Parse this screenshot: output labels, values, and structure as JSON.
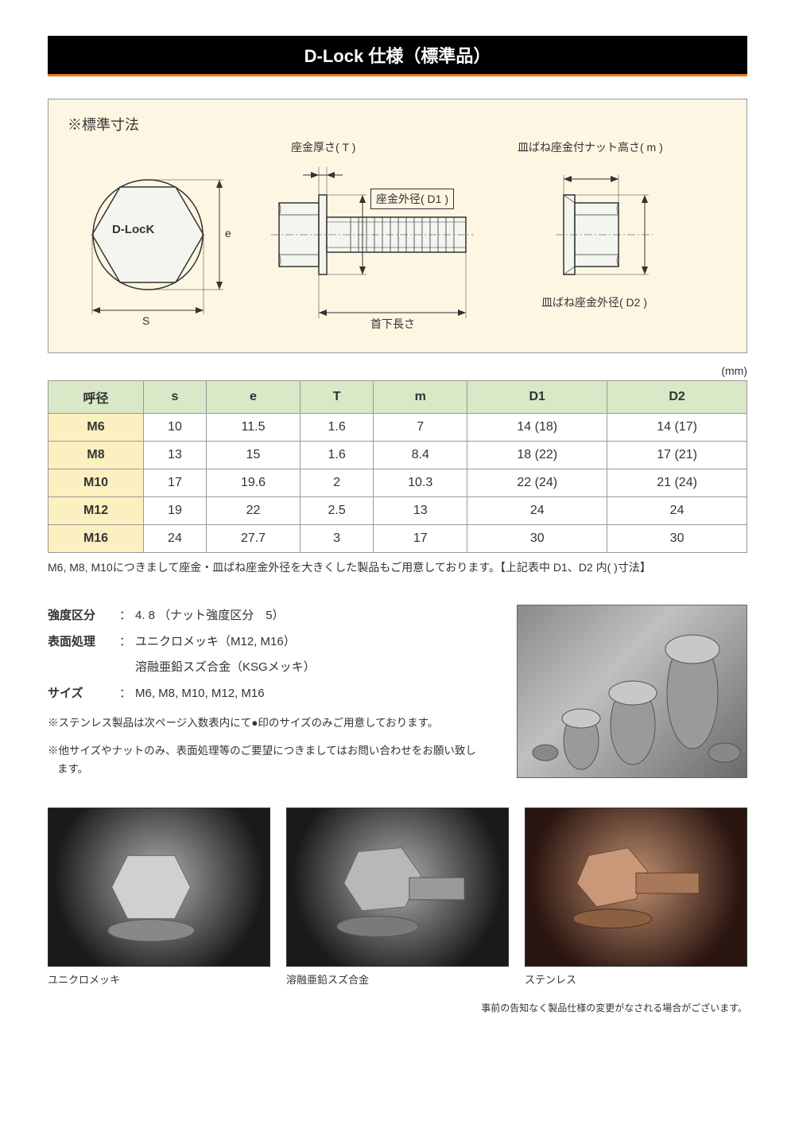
{
  "title": "D-Lock 仕様（標準品）",
  "diagram": {
    "heading": "※標準寸法",
    "labels": {
      "washer_thickness": "座金厚さ( T )",
      "washer_od": "座金外径( D1 )",
      "nut_height": "皿ばね座金付ナット高さ( m )",
      "spring_washer_od": "皿ばね座金外径( D2 )",
      "under_head_length": "首下長さ",
      "s": "S",
      "e": "e",
      "brand": "D-LocK"
    }
  },
  "unit": "(mm)",
  "table": {
    "columns": [
      "呼径",
      "s",
      "e",
      "T",
      "m",
      "D1",
      "D2"
    ],
    "rows": [
      [
        "M6",
        "10",
        "11.5",
        "1.6",
        "7",
        "14 (18)",
        "14 (17)"
      ],
      [
        "M8",
        "13",
        "15",
        "1.6",
        "8.4",
        "18 (22)",
        "17 (21)"
      ],
      [
        "M10",
        "17",
        "19.6",
        "2",
        "10.3",
        "22 (24)",
        "21 (24)"
      ],
      [
        "M12",
        "19",
        "22",
        "2.5",
        "13",
        "24",
        "24"
      ],
      [
        "M16",
        "24",
        "27.7",
        "3",
        "17",
        "30",
        "30"
      ]
    ]
  },
  "table_note": "M6, M8, M10につきまして座金・皿ばね座金外径を大きくした製品もご用意しております。【上記表中 D1、D2 内(   )寸法】",
  "details": {
    "strength": {
      "label": "強度区分",
      "value": "4. 8 （ナット強度区分　5）"
    },
    "surface": {
      "label": "表面処理",
      "value1": "ユニクロメッキ（M12, M16）",
      "value2": "溶融亜鉛スズ合金（KSGメッキ）"
    },
    "size": {
      "label": "サイズ",
      "value": "M6, M8, M10, M12, M16"
    },
    "note1": "※ステンレス製品は次ページ入数表内にて●印のサイズのみご用意しております。",
    "note2": "※他サイズやナットのみ、表面処理等のご要望につきましてはお問い合わせをお願い致します。"
  },
  "gallery": [
    {
      "caption": "ユニクロメッキ"
    },
    {
      "caption": "溶融亜鉛スズ合金"
    },
    {
      "caption": "ステンレス"
    }
  ],
  "disclaimer": "事前の告知なく製品仕様の変更がなされる場合がございます。",
  "colors": {
    "title_bg": "#000000",
    "title_accent": "#e87722",
    "diagram_bg": "#fdf6e3",
    "th_bg": "#d9e8c6",
    "rowhead_bg": "#fdf0c0",
    "border": "#999999"
  }
}
